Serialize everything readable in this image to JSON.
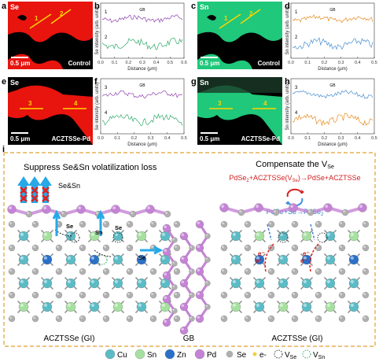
{
  "maps": [
    {
      "letter": "a",
      "element": "Se",
      "lines": [
        "1",
        "2"
      ],
      "scale": "0.5 μm",
      "sample": "Control"
    },
    {
      "letter": "c",
      "element": "Sn",
      "lines": [
        "1",
        "2"
      ],
      "scale": "0.5 μm",
      "sample": "Control"
    },
    {
      "letter": "e",
      "element": "Se",
      "lines": [
        "3",
        "4"
      ],
      "scale": "0.5 μm",
      "sample": "ACZTSSe-Pd"
    },
    {
      "letter": "g",
      "element": "Sn",
      "lines": [
        "3",
        "4"
      ],
      "scale": "0.5 μm",
      "sample": "ACZTSSe-Pd"
    }
  ],
  "profiles": [
    {
      "letter": "b",
      "curves": [
        "1",
        "2"
      ],
      "gb": "GB",
      "ylabel": "Se intensity (arb. units)",
      "xlabel": "Distance (μm)",
      "xlim": [
        0,
        0.6
      ],
      "xticks": [
        {
          "value": 0,
          "label": "0.0"
        },
        0.1,
        0.2,
        0.3,
        0.4,
        0.5,
        0.6
      ]
    },
    {
      "letter": "d",
      "curves": [
        "1",
        "2"
      ],
      "gb": "GB",
      "ylabel": "Sn intensity (arb. units)",
      "xlabel": "Distance (μm)",
      "xlim": [
        0,
        0.5
      ],
      "xticks": [
        {
          "value": 0,
          "label": "0.0"
        },
        0.1,
        0.2,
        0.3,
        0.4,
        0.5
      ]
    },
    {
      "letter": "f",
      "curves": [
        "3",
        "4"
      ],
      "gb": "GB",
      "ylabel": "Se intensity (arb. units)",
      "xlabel": "Distance (μm)",
      "xlim": [
        0,
        0.5
      ],
      "xticks": [
        {
          "value": 0,
          "label": "0.0"
        },
        0.1,
        0.2,
        0.3,
        0.4,
        0.5
      ]
    },
    {
      "letter": "h",
      "curves": [
        "3",
        "4"
      ],
      "gb": "GB",
      "ylabel": "Sn intensity (arb. units)",
      "xlabel": "Distance (μm)",
      "xlim": [
        0,
        0.5
      ],
      "xticks": [
        {
          "value": 0,
          "label": "0.0"
        },
        0.1,
        0.2,
        0.3,
        0.4,
        0.5
      ]
    }
  ],
  "schematic": {
    "letter": "i",
    "left_title": "Suppress  Se&Sn volatilization  loss",
    "arrow_label": "Se&Sn",
    "atom_labels": [
      "Se",
      "Sn",
      "Se",
      "Se"
    ],
    "right_title": [
      "Compensate the V",
      "Se"
    ],
    "reaction1": [
      "PdSe",
      "2",
      "+ACZTSSe(V",
      "Se",
      ")→PdSe+ACZTSSe"
    ],
    "reaction2": [
      "PdSe+Se→PdSe",
      "2"
    ],
    "electron": "e⁻",
    "left_label": "ACZTSSe   (GI)",
    "gb_label": "GB",
    "right_label": "ACZTSSe   (GI)"
  },
  "legend": {
    "cu": "Cu",
    "sn": "Sn",
    "zn": "Zn",
    "pd": "Pd",
    "se": "Se",
    "e": "e-",
    "vse": [
      "V",
      "Se"
    ],
    "vsn": [
      "V",
      "Sn"
    ]
  }
}
